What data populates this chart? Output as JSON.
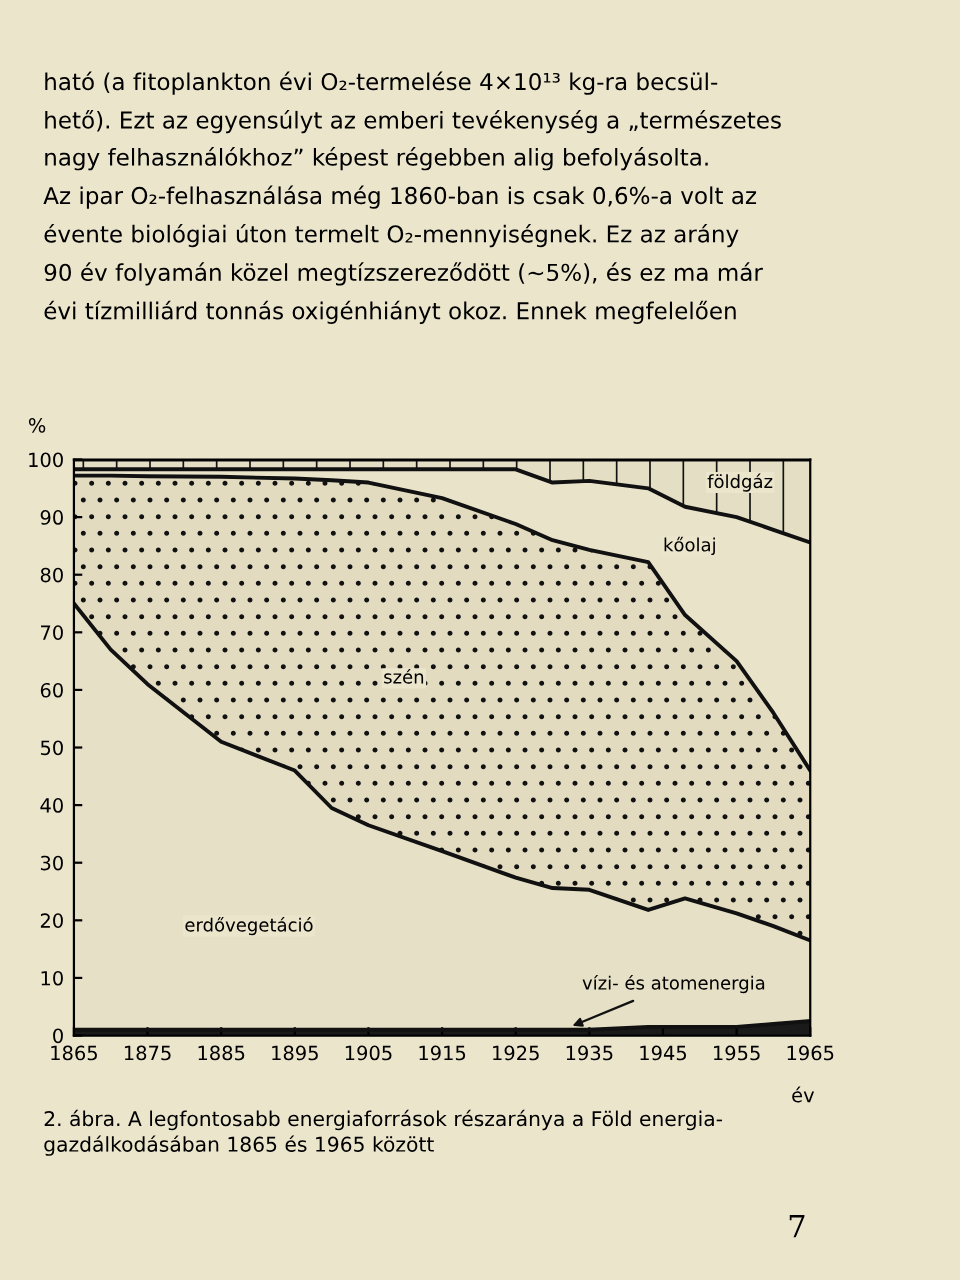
{
  "chart_data": {
    "type": "area",
    "stacked": true,
    "x": [
      1865,
      1870,
      1875,
      1885,
      1895,
      1900,
      1905,
      1915,
      1925,
      1930,
      1935,
      1943,
      1948,
      1955,
      1960,
      1965
    ],
    "series": [
      {
        "name": "vízi- és atomenergia",
        "color": "#1a1a1a",
        "values": [
          1,
          1,
          1,
          1,
          1,
          1,
          1,
          1,
          1,
          1,
          1,
          1.5,
          1.5,
          1.5,
          2,
          2.5
        ]
      },
      {
        "name": "erdővegetáció",
        "color": "#e6e0c6",
        "values": [
          74,
          66,
          60,
          50,
          45,
          38.5,
          35.5,
          31,
          26.4,
          24.6,
          24.3,
          20.3,
          22.3,
          19.7,
          17,
          14
        ]
      },
      {
        "name": "szén",
        "color": "#e2dbc0",
        "values": [
          22.2,
          30.2,
          36.1,
          46,
          50.7,
          56.9,
          59.5,
          61.3,
          61.4,
          60.4,
          59,
          60.4,
          49.2,
          43.8,
          37,
          29.5
        ]
      },
      {
        "name": "kőolaj",
        "color": "#e9e3ca",
        "values": [
          1.1,
          1.1,
          1.2,
          1.3,
          1.6,
          1.9,
          2.3,
          5,
          9.5,
          10,
          12,
          12.8,
          18.8,
          25,
          31.8,
          39.6
        ]
      },
      {
        "name": "földgáz",
        "color": "#e4dec4",
        "values": [
          1.7,
          1.7,
          1.7,
          1.7,
          1.7,
          1.7,
          1.7,
          1.7,
          1.7,
          4,
          3.7,
          5,
          8.2,
          10,
          12.2,
          14.4
        ]
      }
    ],
    "xlim": [
      1865,
      1965
    ],
    "xticks": [
      1865,
      1875,
      1885,
      1895,
      1905,
      1915,
      1925,
      1935,
      1945,
      1955,
      1965
    ],
    "ylim": [
      0,
      100
    ],
    "yticks": [
      0,
      10,
      20,
      30,
      40,
      50,
      60,
      70,
      80,
      90,
      100
    ],
    "ylabel": "%",
    "xlabel": "év",
    "grid": false,
    "legend": false,
    "annotations": [
      "ható (a fitoplankton évi O₂-termelése 4×10¹³ kg-ra becsül-",
      "hető). Ezt az egyensúlyt az emberi tevékenység a „természetes",
      "nagy felhasználókhoz” képest régebben alig befolyásolta.",
      "Az ipar O₂-felhasználása még 1860-ban is csak 0,6%-a volt az",
      "évente biológiai úton termelt O₂-mennyiségnek. Ez az arány",
      "90 év folyamán közel megtízszereződött (~5%), és ez ma már",
      "évi tízmilliárd tonnás oxigénhiányt okoz. Ennek megfelelően",
      "2. ábra. A legfontosabb energiaforrások részaránya a Föld energia-",
      "gazdálkodásában 1865 és 1965 között",
      "7"
    ]
  }
}
